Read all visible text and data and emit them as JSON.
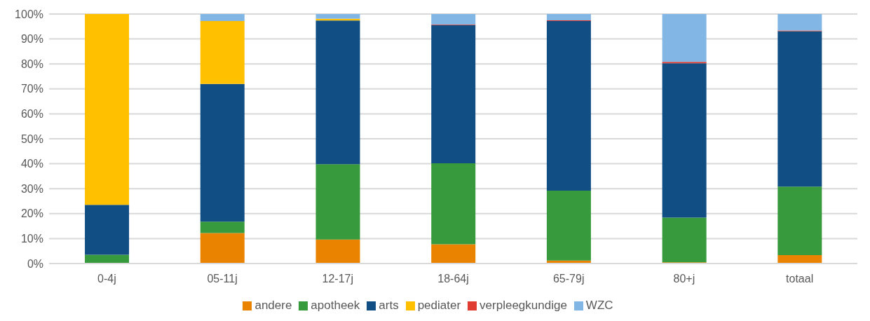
{
  "chart_data": {
    "type": "bar",
    "stacked": true,
    "categories": [
      "0-4j",
      "05-11j",
      "12-17j",
      "18-64j",
      "65-79j",
      "80+j",
      "totaal"
    ],
    "series": [
      {
        "name": "andere",
        "color": "#e98300",
        "values": [
          0,
          12.2,
          9.6,
          7.7,
          1.2,
          0.5,
          3.4
        ]
      },
      {
        "name": "apotheek",
        "color": "#379a3c",
        "values": [
          3.5,
          4.6,
          30.2,
          32.5,
          28.0,
          17.9,
          27.4
        ]
      },
      {
        "name": "arts",
        "color": "#104e83",
        "values": [
          20,
          55.2,
          57.6,
          55.4,
          68.0,
          61.9,
          62.3
        ]
      },
      {
        "name": "pediater",
        "color": "#ffc000",
        "values": [
          76.5,
          25.2,
          0.7,
          0,
          0,
          0,
          0
        ]
      },
      {
        "name": "verpleegkundige",
        "color": "#e03c31",
        "values": [
          0,
          0,
          0,
          0.2,
          0.3,
          0.5,
          0.3
        ]
      },
      {
        "name": "WZC",
        "color": "#82b6e4",
        "values": [
          0,
          2.8,
          1.9,
          4.2,
          2.5,
          19.2,
          6.6
        ]
      }
    ],
    "ylim": [
      0,
      100
    ],
    "yticks": [
      {
        "value": 0,
        "label": "0%"
      },
      {
        "value": 10,
        "label": "10%"
      },
      {
        "value": 20,
        "label": "20%"
      },
      {
        "value": 30,
        "label": "30%"
      },
      {
        "value": 40,
        "label": "40%"
      },
      {
        "value": 50,
        "label": "50%"
      },
      {
        "value": 60,
        "label": "60%"
      },
      {
        "value": 70,
        "label": "70%"
      },
      {
        "value": 80,
        "label": "80%"
      },
      {
        "value": 90,
        "label": "90%"
      },
      {
        "value": 100,
        "label": "100%"
      }
    ],
    "grid": "y",
    "legend": "bottom"
  }
}
